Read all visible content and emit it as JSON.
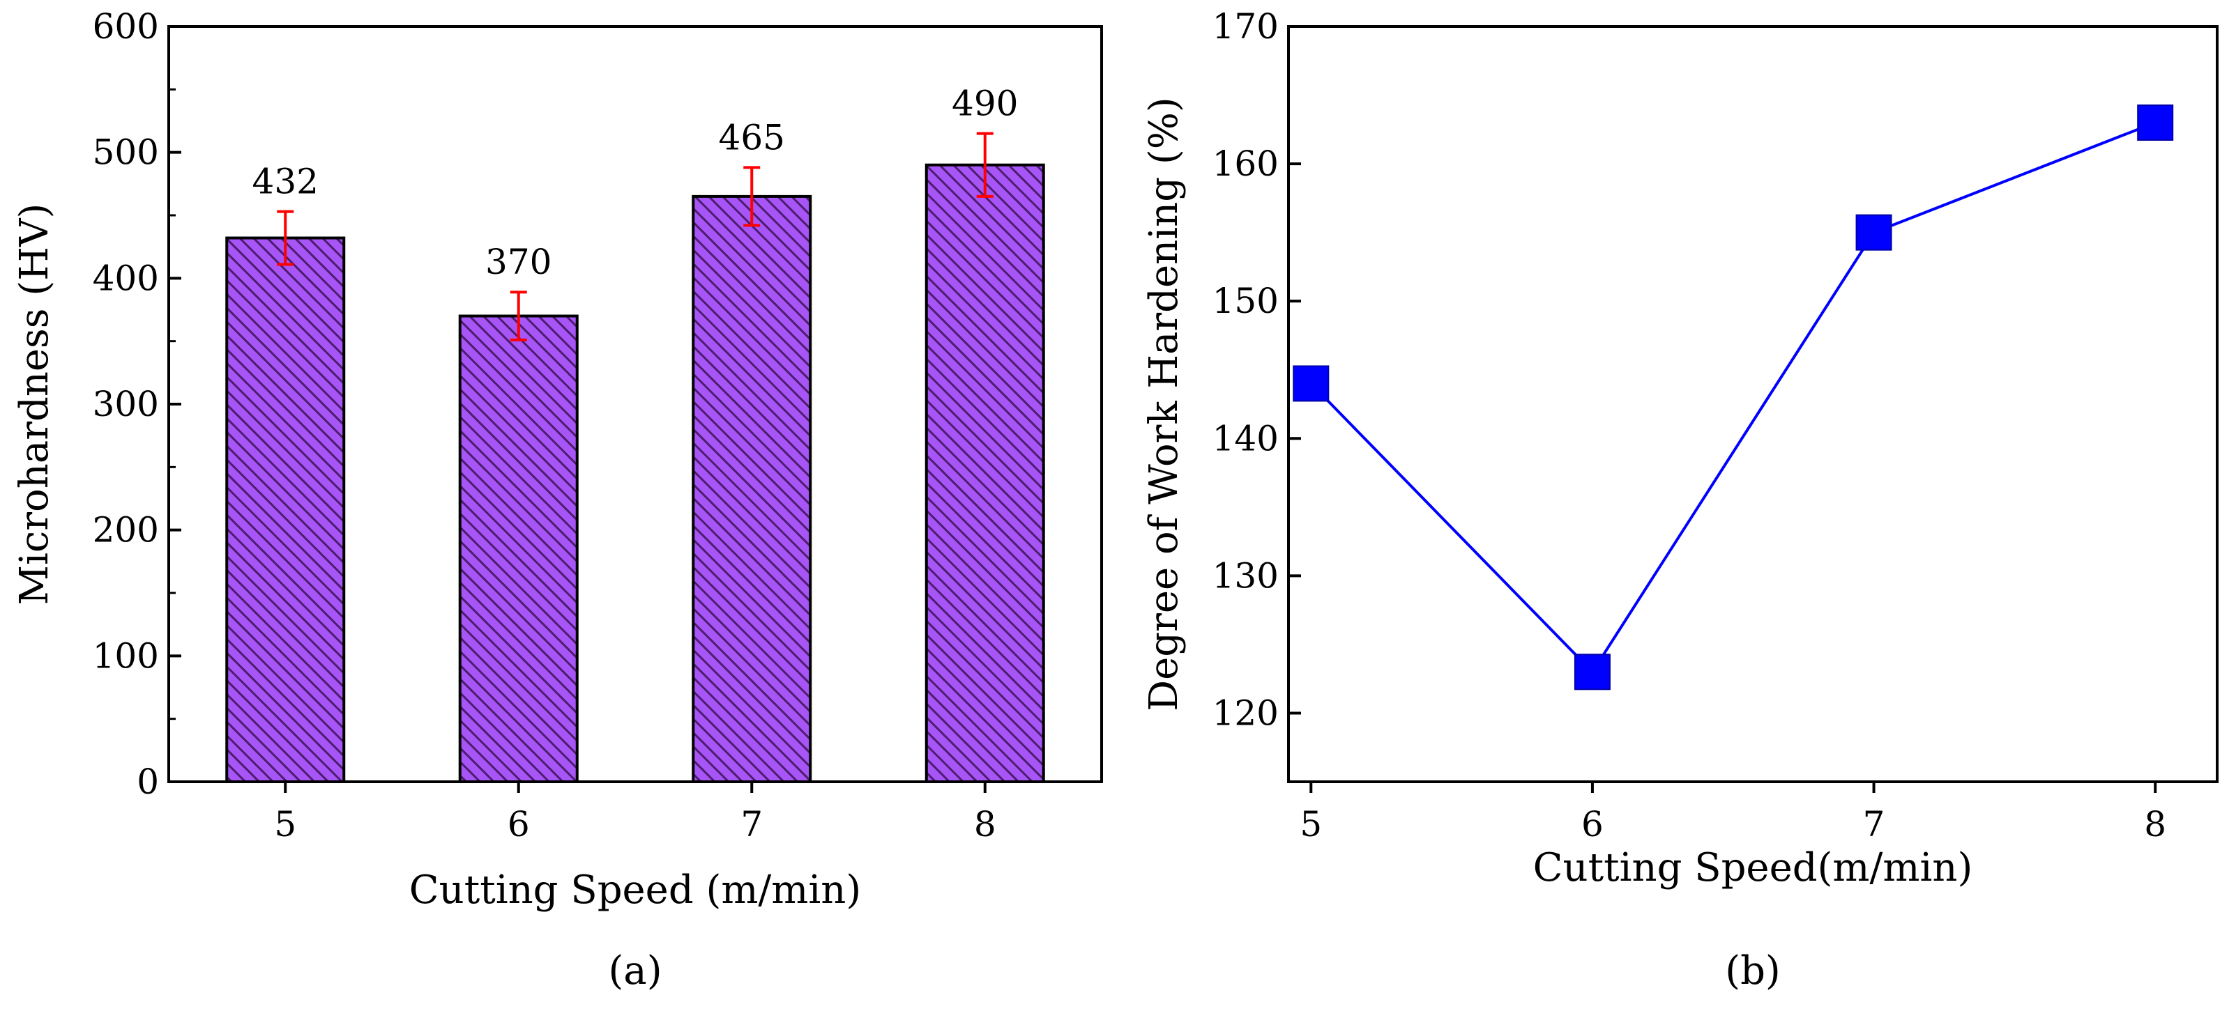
{
  "chart_data": [
    {
      "type": "bar",
      "panel_label": "(a)",
      "categories": [
        "5",
        "6",
        "7",
        "8"
      ],
      "values": [
        432,
        370,
        465,
        490
      ],
      "data_labels": [
        "432",
        "370",
        "465",
        "490"
      ],
      "errors": [
        21,
        19,
        23,
        25
      ],
      "xlabel": "Cutting Speed (m/min)",
      "ylabel": "Microhardness (HV)",
      "ylim": [
        0,
        600
      ],
      "yticks": [
        0,
        100,
        200,
        300,
        400,
        500,
        600
      ],
      "ytick_labels": [
        "0",
        "100",
        "200",
        "300",
        "400",
        "500",
        "600"
      ],
      "grid": false,
      "colors": {
        "bar_fill": "#a855f7",
        "bar_hatch": "#4c1d6e",
        "bar_edge": "#000000",
        "error_bar": "#ff0000"
      }
    },
    {
      "type": "line",
      "panel_label": "(b)",
      "x": [
        5,
        6,
        7,
        8
      ],
      "y": [
        144,
        123,
        155,
        163
      ],
      "xticks": [
        "5",
        "6",
        "7",
        "8"
      ],
      "xlabel": "Cutting Speed(m/min)",
      "ylabel": "Degree of Work Hardening (%)",
      "ylim": [
        115,
        170
      ],
      "yticks": [
        120,
        130,
        140,
        150,
        160,
        170
      ],
      "ytick_labels": [
        "120",
        "130",
        "140",
        "150",
        "160",
        "170"
      ],
      "marker": "square",
      "grid": false,
      "colors": {
        "line": "#0000ff",
        "marker": "#0000ff"
      }
    }
  ]
}
